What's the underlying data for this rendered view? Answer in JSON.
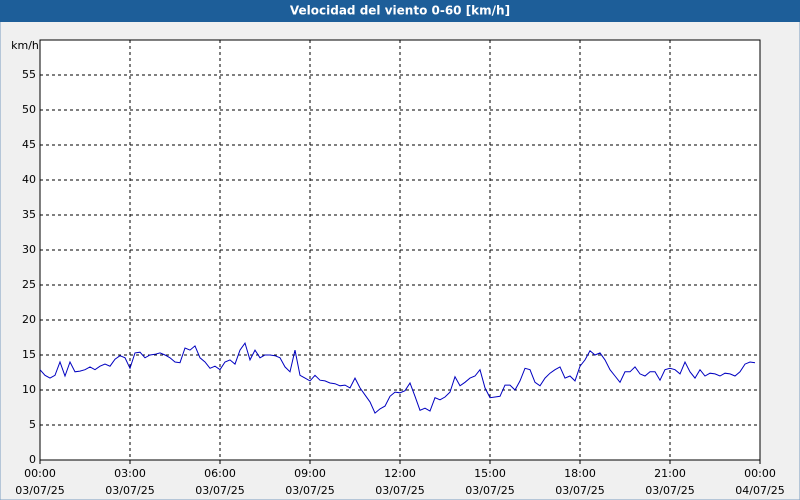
{
  "chart_data": {
    "type": "line",
    "title": "Velocidad del viento 0-60 [km/h]",
    "y_label": "km/h",
    "color": "#0000c0",
    "grid": true,
    "xlim": [
      0,
      1440
    ],
    "ylim": [
      0,
      60
    ],
    "yticks": [
      0,
      5,
      10,
      15,
      20,
      25,
      30,
      35,
      40,
      45,
      50,
      55
    ],
    "xticks": [
      {
        "value": 0,
        "label": "00:00",
        "date": "03/07/25"
      },
      {
        "value": 180,
        "label": "03:00",
        "date": "03/07/25"
      },
      {
        "value": 360,
        "label": "06:00",
        "date": "03/07/25"
      },
      {
        "value": 540,
        "label": "09:00",
        "date": "03/07/25"
      },
      {
        "value": 720,
        "label": "12:00",
        "date": "03/07/25"
      },
      {
        "value": 900,
        "label": "15:00",
        "date": "03/07/25"
      },
      {
        "value": 1080,
        "label": "18:00",
        "date": "03/07/25"
      },
      {
        "value": 1260,
        "label": "21:00",
        "date": "03/07/25"
      },
      {
        "value": 1440,
        "label": "00:00",
        "date": "04/07/25"
      }
    ],
    "x": [
      0,
      10,
      20,
      30,
      40,
      50,
      60,
      70,
      80,
      90,
      100,
      110,
      120,
      130,
      140,
      150,
      160,
      170,
      180,
      190,
      200,
      210,
      220,
      230,
      240,
      250,
      260,
      270,
      280,
      290,
      300,
      310,
      320,
      330,
      340,
      350,
      360,
      370,
      380,
      390,
      400,
      410,
      420,
      430,
      440,
      450,
      460,
      470,
      480,
      490,
      500,
      510,
      520,
      530,
      540,
      550,
      560,
      570,
      580,
      590,
      600,
      610,
      620,
      630,
      640,
      650,
      660,
      670,
      680,
      690,
      700,
      710,
      720,
      730,
      740,
      750,
      760,
      770,
      780,
      790,
      800,
      810,
      820,
      830,
      840,
      850,
      860,
      870,
      880,
      890,
      900,
      910,
      920,
      930,
      940,
      950,
      960,
      970,
      980,
      990,
      1000,
      1010,
      1020,
      1030,
      1040,
      1050,
      1060,
      1070,
      1080,
      1090,
      1100,
      1110,
      1120,
      1130,
      1140,
      1150,
      1160,
      1170,
      1180,
      1190,
      1200,
      1210,
      1220,
      1230,
      1240,
      1250,
      1260,
      1270,
      1280,
      1290,
      1300,
      1310,
      1320,
      1330,
      1340,
      1350,
      1360,
      1370,
      1380,
      1390,
      1400,
      1410,
      1420,
      1430
    ],
    "values": [
      12.9,
      12.1,
      11.7,
      12.1,
      14.0,
      12.0,
      14.0,
      12.6,
      12.7,
      12.9,
      13.3,
      12.9,
      13.4,
      13.7,
      13.4,
      14.4,
      14.9,
      14.6,
      13.1,
      15.3,
      15.4,
      14.6,
      15.0,
      15.1,
      15.3,
      15.0,
      14.6,
      14.0,
      13.9,
      16.0,
      15.7,
      16.3,
      14.6,
      14.0,
      13.1,
      13.4,
      12.9,
      14.0,
      14.3,
      13.7,
      15.7,
      16.7,
      14.3,
      15.7,
      14.6,
      15.0,
      15.0,
      14.9,
      14.6,
      13.3,
      12.6,
      15.7,
      12.1,
      11.7,
      11.3,
      12.1,
      11.4,
      11.3,
      11.0,
      10.9,
      10.6,
      10.7,
      10.3,
      11.7,
      10.3,
      9.3,
      8.3,
      6.7,
      7.3,
      7.7,
      9.1,
      9.7,
      9.6,
      9.9,
      11.0,
      9.1,
      7.1,
      7.4,
      7.0,
      8.9,
      8.6,
      9.0,
      9.7,
      11.9,
      10.6,
      11.1,
      11.7,
      12.0,
      12.9,
      10.3,
      8.9,
      9.0,
      9.1,
      10.7,
      10.7,
      10.0,
      11.3,
      13.1,
      12.9,
      11.1,
      10.6,
      11.7,
      12.4,
      12.9,
      13.3,
      11.7,
      12.0,
      11.3,
      13.4,
      14.3,
      15.6,
      15.0,
      15.3,
      14.3,
      12.9,
      12.0,
      11.1,
      12.6,
      12.6,
      13.3,
      12.3,
      12.0,
      12.6,
      12.6,
      11.4,
      12.9,
      13.1,
      12.9,
      12.3,
      14.0,
      12.6,
      11.7,
      12.9,
      12.0,
      12.4,
      12.3,
      12.0,
      12.4,
      12.3,
      12.0,
      12.6,
      13.7,
      14.0,
      13.9
    ]
  }
}
